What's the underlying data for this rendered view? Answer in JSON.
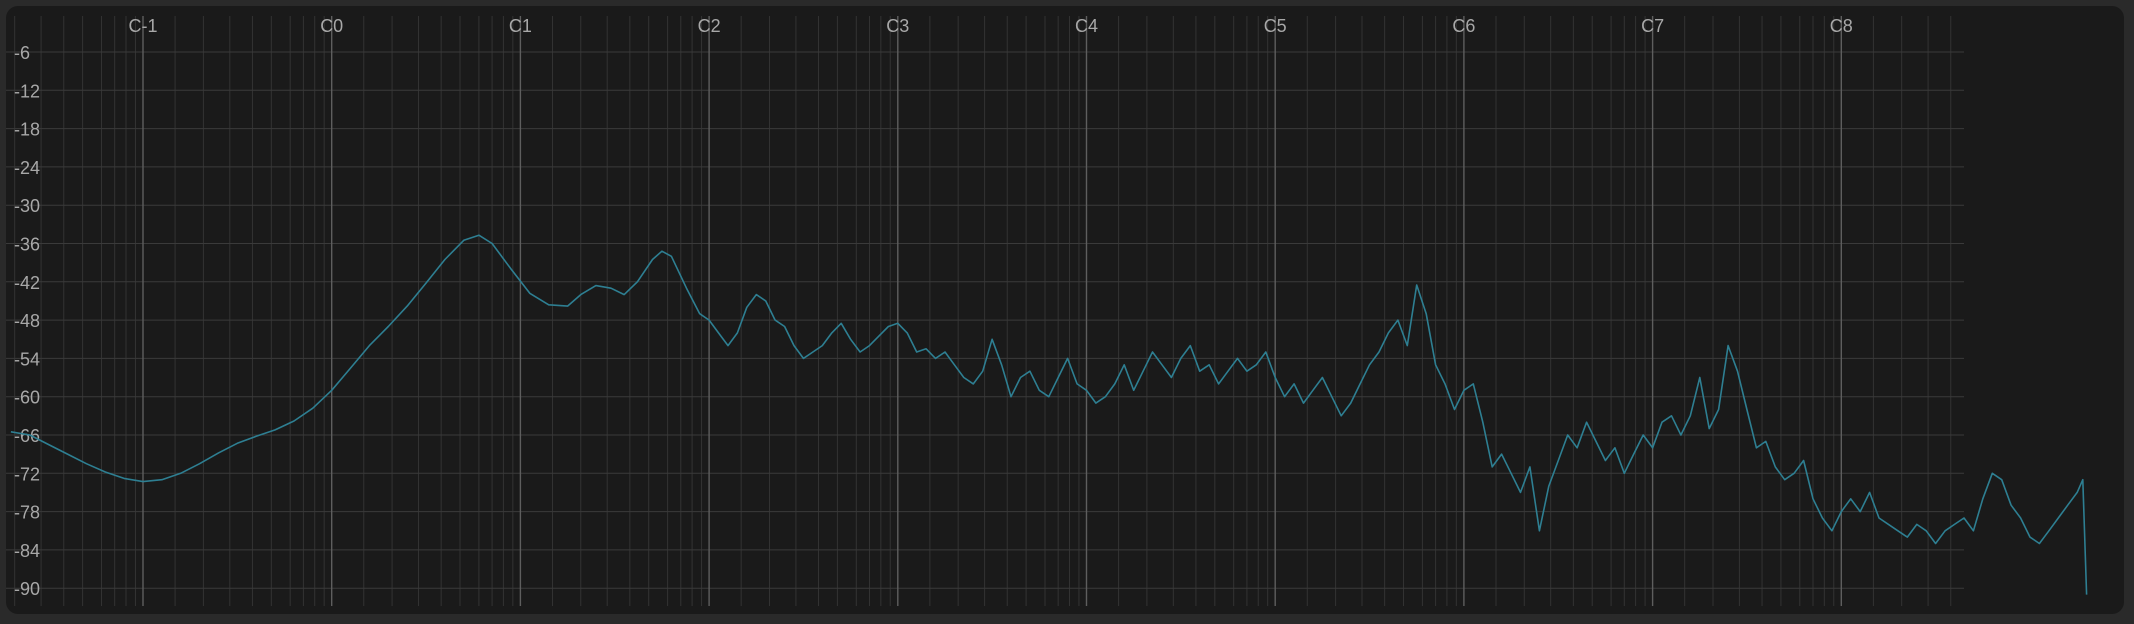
{
  "chart_data": {
    "type": "line",
    "title": "",
    "xlabel": "",
    "ylabel": "",
    "x_tick_labels": [
      "C-1",
      "C0",
      "C1",
      "C2",
      "C3",
      "C4",
      "C5",
      "C6",
      "C7",
      "C8"
    ],
    "y_ticks": [
      -6,
      -12,
      -18,
      -24,
      -30,
      -36,
      -42,
      -48,
      -54,
      -60,
      -66,
      -72,
      -78,
      -84,
      -90
    ],
    "ylim": [
      -91.5,
      0
    ],
    "xlim_octaves": [
      -1.7,
      9.3
    ],
    "grid": true,
    "legend": "none",
    "series_color": "#2e7f92",
    "series": [
      {
        "values": [
          [
            -1.7,
            -65.5
          ],
          [
            -1.6,
            -66
          ],
          [
            -1.5,
            -67.5
          ],
          [
            -1.4,
            -69
          ],
          [
            -1.3,
            -70.5
          ],
          [
            -1.2,
            -71.8
          ],
          [
            -1.1,
            -72.8
          ],
          [
            -1.0,
            -73.3
          ],
          [
            -0.9,
            -73
          ],
          [
            -0.8,
            -72
          ],
          [
            -0.7,
            -70.5
          ],
          [
            -0.6,
            -68.8
          ],
          [
            -0.5,
            -67.3
          ],
          [
            -0.4,
            -66.2
          ],
          [
            -0.3,
            -65.2
          ],
          [
            -0.2,
            -63.8
          ],
          [
            -0.1,
            -61.8
          ],
          [
            0.0,
            -59
          ],
          [
            0.1,
            -55.5
          ],
          [
            0.2,
            -52
          ],
          [
            0.3,
            -49
          ],
          [
            0.4,
            -45.8
          ],
          [
            0.5,
            -42.2
          ],
          [
            0.6,
            -38.5
          ],
          [
            0.7,
            -35.5
          ],
          [
            0.78,
            -34.7
          ],
          [
            0.85,
            -36
          ],
          [
            0.95,
            -40
          ],
          [
            1.05,
            -43.8
          ],
          [
            1.15,
            -45.6
          ],
          [
            1.25,
            -45.8
          ],
          [
            1.32,
            -44
          ],
          [
            1.4,
            -42.6
          ],
          [
            1.48,
            -43
          ],
          [
            1.55,
            -44
          ],
          [
            1.62,
            -42
          ],
          [
            1.7,
            -38.5
          ],
          [
            1.75,
            -37.2
          ],
          [
            1.8,
            -38
          ],
          [
            1.88,
            -43
          ],
          [
            1.95,
            -47
          ],
          [
            2.0,
            -48
          ],
          [
            2.05,
            -50
          ],
          [
            2.1,
            -52
          ],
          [
            2.15,
            -50
          ],
          [
            2.2,
            -46
          ],
          [
            2.25,
            -44
          ],
          [
            2.3,
            -45
          ],
          [
            2.35,
            -48
          ],
          [
            2.4,
            -49
          ],
          [
            2.45,
            -52
          ],
          [
            2.5,
            -54
          ],
          [
            2.55,
            -53
          ],
          [
            2.6,
            -52
          ],
          [
            2.65,
            -50
          ],
          [
            2.7,
            -48.5
          ],
          [
            2.75,
            -51
          ],
          [
            2.8,
            -53
          ],
          [
            2.85,
            -52
          ],
          [
            2.9,
            -50.5
          ],
          [
            2.95,
            -49
          ],
          [
            3.0,
            -48.5
          ],
          [
            3.05,
            -50
          ],
          [
            3.1,
            -53
          ],
          [
            3.15,
            -52.5
          ],
          [
            3.2,
            -54
          ],
          [
            3.25,
            -53
          ],
          [
            3.3,
            -55
          ],
          [
            3.35,
            -57
          ],
          [
            3.4,
            -58
          ],
          [
            3.45,
            -56
          ],
          [
            3.5,
            -51
          ],
          [
            3.55,
            -55
          ],
          [
            3.6,
            -60
          ],
          [
            3.65,
            -57
          ],
          [
            3.7,
            -56
          ],
          [
            3.75,
            -59
          ],
          [
            3.8,
            -60
          ],
          [
            3.85,
            -57
          ],
          [
            3.9,
            -54
          ],
          [
            3.95,
            -58
          ],
          [
            4.0,
            -59
          ],
          [
            4.05,
            -61
          ],
          [
            4.1,
            -60
          ],
          [
            4.15,
            -58
          ],
          [
            4.2,
            -55
          ],
          [
            4.25,
            -59
          ],
          [
            4.3,
            -56
          ],
          [
            4.35,
            -53
          ],
          [
            4.4,
            -55
          ],
          [
            4.45,
            -57
          ],
          [
            4.5,
            -54
          ],
          [
            4.55,
            -52
          ],
          [
            4.6,
            -56
          ],
          [
            4.65,
            -55
          ],
          [
            4.7,
            -58
          ],
          [
            4.75,
            -56
          ],
          [
            4.8,
            -54
          ],
          [
            4.85,
            -56
          ],
          [
            4.9,
            -55
          ],
          [
            4.95,
            -53
          ],
          [
            5.0,
            -57
          ],
          [
            5.05,
            -60
          ],
          [
            5.1,
            -58
          ],
          [
            5.15,
            -61
          ],
          [
            5.2,
            -59
          ],
          [
            5.25,
            -57
          ],
          [
            5.3,
            -60
          ],
          [
            5.35,
            -63
          ],
          [
            5.4,
            -61
          ],
          [
            5.45,
            -58
          ],
          [
            5.5,
            -55
          ],
          [
            5.55,
            -53
          ],
          [
            5.6,
            -50
          ],
          [
            5.65,
            -48
          ],
          [
            5.7,
            -52
          ],
          [
            5.75,
            -42.5
          ],
          [
            5.8,
            -47
          ],
          [
            5.85,
            -55
          ],
          [
            5.9,
            -58
          ],
          [
            5.95,
            -62
          ],
          [
            6.0,
            -59
          ],
          [
            6.05,
            -58
          ],
          [
            6.1,
            -64
          ],
          [
            6.15,
            -71
          ],
          [
            6.2,
            -69
          ],
          [
            6.25,
            -72
          ],
          [
            6.3,
            -75
          ],
          [
            6.35,
            -71
          ],
          [
            6.4,
            -81
          ],
          [
            6.45,
            -74
          ],
          [
            6.5,
            -70
          ],
          [
            6.55,
            -66
          ],
          [
            6.6,
            -68
          ],
          [
            6.65,
            -64
          ],
          [
            6.7,
            -67
          ],
          [
            6.75,
            -70
          ],
          [
            6.8,
            -68
          ],
          [
            6.85,
            -72
          ],
          [
            6.9,
            -69
          ],
          [
            6.95,
            -66
          ],
          [
            7.0,
            -68
          ],
          [
            7.05,
            -64
          ],
          [
            7.1,
            -63
          ],
          [
            7.15,
            -66
          ],
          [
            7.2,
            -63
          ],
          [
            7.25,
            -57
          ],
          [
            7.3,
            -65
          ],
          [
            7.35,
            -62
          ],
          [
            7.4,
            -52
          ],
          [
            7.45,
            -56
          ],
          [
            7.5,
            -62
          ],
          [
            7.55,
            -68
          ],
          [
            7.6,
            -67
          ],
          [
            7.65,
            -71
          ],
          [
            7.7,
            -73
          ],
          [
            7.75,
            -72
          ],
          [
            7.8,
            -70
          ],
          [
            7.85,
            -76
          ],
          [
            7.9,
            -79
          ],
          [
            7.95,
            -81
          ],
          [
            8.0,
            -78
          ],
          [
            8.05,
            -76
          ],
          [
            8.1,
            -78
          ],
          [
            8.15,
            -75
          ],
          [
            8.2,
            -79
          ],
          [
            8.25,
            -80
          ],
          [
            8.3,
            -81
          ],
          [
            8.35,
            -82
          ],
          [
            8.4,
            -80
          ],
          [
            8.45,
            -81
          ],
          [
            8.5,
            -83
          ],
          [
            8.55,
            -81
          ],
          [
            8.6,
            -80
          ],
          [
            8.65,
            -79
          ],
          [
            8.7,
            -81
          ],
          [
            8.75,
            -76
          ],
          [
            8.8,
            -72
          ],
          [
            8.85,
            -73
          ],
          [
            8.9,
            -77
          ],
          [
            8.95,
            -79
          ],
          [
            9.0,
            -82
          ],
          [
            9.05,
            -83
          ],
          [
            9.1,
            -81
          ],
          [
            9.15,
            -79
          ],
          [
            9.2,
            -77
          ],
          [
            9.25,
            -75
          ],
          [
            9.28,
            -73
          ],
          [
            9.3,
            -91
          ]
        ]
      }
    ]
  }
}
